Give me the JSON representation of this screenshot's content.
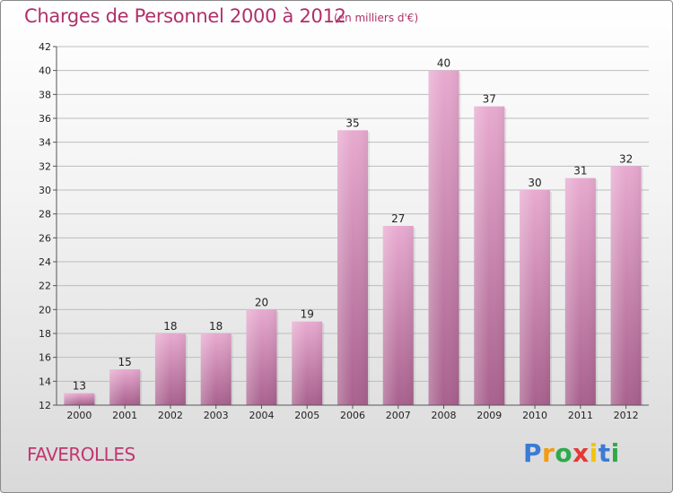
{
  "title": "Charges de Personnel 2000 à 2012",
  "unit_note": "(en milliers d'€)",
  "commune": "FAVEROLLES",
  "logo": {
    "letters": [
      "P",
      "r",
      "o",
      "x",
      "i",
      "t",
      "i"
    ],
    "colors": [
      "#3a7bd5",
      "#f39c12",
      "#2eaa4a",
      "#e53935",
      "#f1c40f",
      "#3a7bd5",
      "#2eaa4a"
    ]
  },
  "colors": {
    "bar_light": "#e7a9cf",
    "bar_dark": "#a9628e",
    "title": "#b0306a"
  },
  "chart_data": {
    "type": "bar",
    "categories": [
      "2000",
      "2001",
      "2002",
      "2003",
      "2004",
      "2005",
      "2006",
      "2007",
      "2008",
      "2009",
      "2010",
      "2011",
      "2012"
    ],
    "values": [
      13,
      15,
      18,
      18,
      20,
      19,
      35,
      27,
      40,
      37,
      30,
      31,
      32
    ],
    "data_labels": [
      "13",
      "15",
      "18",
      "18",
      "20",
      "19",
      "35",
      "27",
      "40",
      "37",
      "30",
      "31",
      "32"
    ],
    "ylim": [
      12,
      42
    ],
    "yticks": [
      12,
      14,
      16,
      18,
      20,
      22,
      24,
      26,
      28,
      30,
      32,
      34,
      36,
      38,
      40,
      42
    ],
    "grid": true
  }
}
